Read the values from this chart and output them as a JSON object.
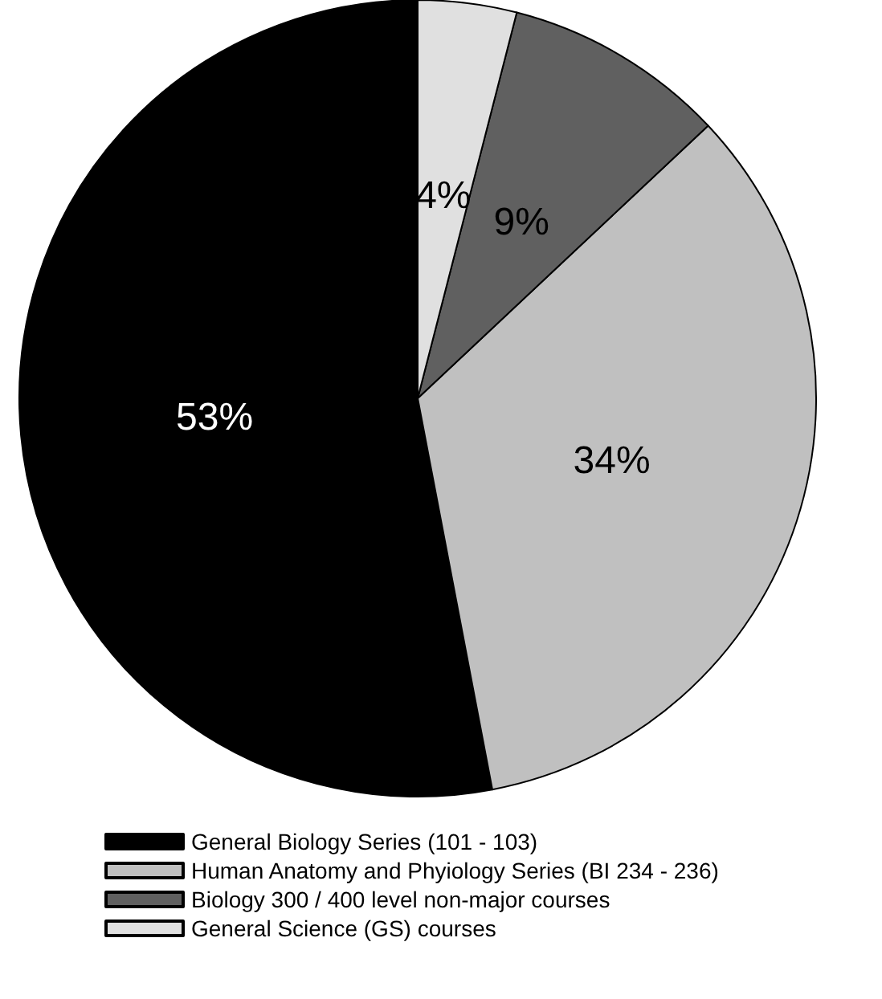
{
  "chart_data": {
    "type": "pie",
    "categories": [
      "General Biology Series (101 - 103)",
      "Human Anatomy and Phyiology Series (BI 234 - 236)",
      "Biology 300 / 400 level non-major courses",
      "General Science (GS) courses"
    ],
    "values": [
      53,
      34,
      9,
      4
    ],
    "colors": [
      "#000000",
      "#c0c0c0",
      "#606060",
      "#e0e0e0"
    ],
    "value_labels": [
      "53%",
      "34%",
      "9%",
      "4%"
    ],
    "legend": "bottom"
  }
}
